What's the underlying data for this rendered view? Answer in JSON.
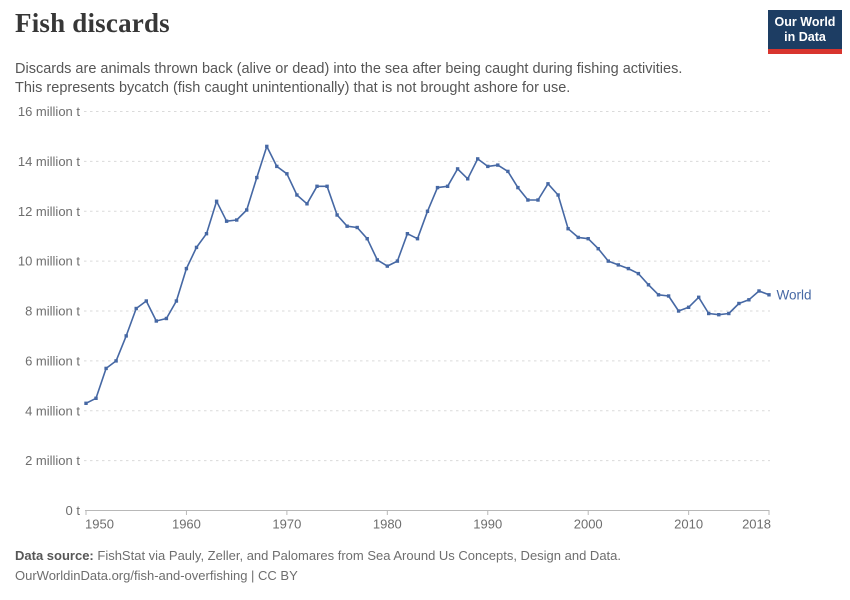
{
  "header": {
    "title": "Fish discards",
    "subtitle_line1": "Discards are animals thrown back (alive or dead) into the sea after being caught during fishing activities.",
    "subtitle_line2": "This represents bycatch (fish caught unintentionally) that is not brought ashore for use.",
    "logo": {
      "line1": "Our World",
      "line2": "in Data",
      "bg_color": "#1d3d63",
      "accent_color": "#d8352e"
    }
  },
  "chart_data": {
    "type": "line",
    "title": "Fish discards",
    "unit": "million t",
    "xlim": [
      1950,
      2018
    ],
    "ylim": [
      0,
      16
    ],
    "grid": "horizontal-dashed",
    "legend_position": "end-of-line-label",
    "x_ticks": [
      1950,
      1960,
      1970,
      1980,
      1990,
      2000,
      2010,
      2018
    ],
    "y_ticks": [
      {
        "value": 0,
        "label": "0 t"
      },
      {
        "value": 2,
        "label": "2 million t"
      },
      {
        "value": 4,
        "label": "4 million t"
      },
      {
        "value": 6,
        "label": "6 million t"
      },
      {
        "value": 8,
        "label": "8 million t"
      },
      {
        "value": 10,
        "label": "10 million t"
      },
      {
        "value": 12,
        "label": "12 million t"
      },
      {
        "value": 14,
        "label": "14 million t"
      },
      {
        "value": 16,
        "label": "16 million t"
      }
    ],
    "series": [
      {
        "name": "World",
        "color": "#4668a4",
        "years": [
          1950,
          1951,
          1952,
          1953,
          1954,
          1955,
          1956,
          1957,
          1958,
          1959,
          1960,
          1961,
          1962,
          1963,
          1964,
          1965,
          1966,
          1967,
          1968,
          1969,
          1970,
          1971,
          1972,
          1973,
          1974,
          1975,
          1976,
          1977,
          1978,
          1979,
          1980,
          1981,
          1982,
          1983,
          1984,
          1985,
          1986,
          1987,
          1988,
          1989,
          1990,
          1991,
          1992,
          1993,
          1994,
          1995,
          1996,
          1997,
          1998,
          1999,
          2000,
          2001,
          2002,
          2003,
          2004,
          2005,
          2006,
          2007,
          2008,
          2009,
          2010,
          2011,
          2012,
          2013,
          2014,
          2015,
          2016,
          2017,
          2018
        ],
        "values": [
          4.3,
          4.5,
          5.7,
          6.0,
          7.0,
          8.1,
          8.4,
          7.6,
          7.7,
          8.4,
          9.7,
          10.55,
          11.1,
          12.4,
          11.6,
          11.65,
          12.05,
          13.35,
          14.6,
          13.8,
          13.5,
          12.65,
          12.3,
          13.0,
          13.0,
          11.85,
          11.4,
          11.35,
          10.9,
          10.05,
          9.8,
          10.0,
          11.1,
          10.9,
          12.0,
          12.95,
          13.0,
          13.7,
          13.3,
          14.1,
          13.8,
          13.85,
          13.6,
          12.95,
          12.45,
          12.45,
          13.1,
          12.65,
          11.3,
          10.95,
          10.9,
          10.5,
          10.0,
          9.85,
          9.7,
          9.5,
          9.05,
          8.65,
          8.6,
          8.0,
          8.15,
          8.55,
          7.9,
          7.85,
          7.9,
          8.3,
          8.45,
          8.8,
          8.65
        ]
      }
    ],
    "style": {
      "gridline_color": "#dadada",
      "axis_color": "#b8b8b8",
      "tick_label_color": "#6e6e6e"
    }
  },
  "footer": {
    "source_label": "Data source:",
    "source_text": "FishStat via Pauly, Zeller, and Palomares from Sea Around Us Concepts, Design and Data.",
    "url_line": "OurWorldinData.org/fish-and-overfishing | CC BY"
  }
}
